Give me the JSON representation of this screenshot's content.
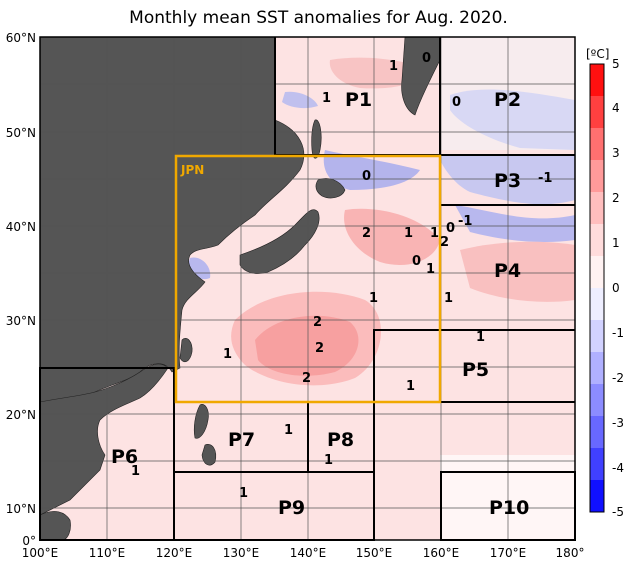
{
  "title": "Monthly mean SST anomalies for Aug. 2020.",
  "lat_labels": [
    {
      "value": 60,
      "text": "60°N"
    },
    {
      "value": 50,
      "text": "50°N"
    },
    {
      "value": 40,
      "text": "40°N"
    },
    {
      "value": 30,
      "text": "30°N"
    },
    {
      "value": 20,
      "text": "20°N"
    },
    {
      "value": 10,
      "text": "10°N"
    },
    {
      "value": 0,
      "text": "0°"
    }
  ],
  "lon_labels": [
    {
      "value": 100,
      "text": "100°E"
    },
    {
      "value": 110,
      "text": "110°E"
    },
    {
      "value": 120,
      "text": "120°E"
    },
    {
      "value": 130,
      "text": "130°E"
    },
    {
      "value": 140,
      "text": "140°E"
    },
    {
      "value": 150,
      "text": "150°E"
    },
    {
      "value": 160,
      "text": "160°E"
    },
    {
      "value": 170,
      "text": "170°E"
    },
    {
      "value": 180,
      "text": "180°"
    }
  ],
  "colorbar": {
    "unit": "[ºC]",
    "ticks": [
      "5",
      "4",
      "3",
      "2",
      "1",
      "0",
      "-1",
      "-2",
      "-3",
      "-4",
      "-5"
    ],
    "colors": [
      "#ff1010",
      "#ff4040",
      "#ff7070",
      "#ff9a9a",
      "#ffbebe",
      "#ffdcdc",
      "#fff2f2",
      "#eeeeff",
      "#d2d2ff",
      "#b0b0ff",
      "#8c8cff",
      "#6868ff",
      "#4040ff",
      "#1010ff"
    ]
  },
  "regions": [
    {
      "id": "JPN",
      "label": "JPN",
      "color": "#f0a800"
    },
    {
      "id": "P1",
      "label": "P1"
    },
    {
      "id": "P2",
      "label": "P2"
    },
    {
      "id": "P3",
      "label": "P3"
    },
    {
      "id": "P4",
      "label": "P4"
    },
    {
      "id": "P5",
      "label": "P5"
    },
    {
      "id": "P6",
      "label": "P6"
    },
    {
      "id": "P7",
      "label": "P7"
    },
    {
      "id": "P8",
      "label": "P8"
    },
    {
      "id": "P9",
      "label": "P9"
    },
    {
      "id": "P10",
      "label": "P10"
    }
  ],
  "contour_labels": [
    "1",
    "0",
    "1",
    "0",
    "0",
    "-1",
    "0",
    "2",
    "1",
    "1",
    "-1",
    "2",
    "0",
    "1",
    "1",
    "1",
    "2",
    "2",
    "2",
    "1",
    "1",
    "1",
    "1",
    "1",
    "1",
    "1",
    "1"
  ],
  "colors": {
    "land": "#555555",
    "ocean_base": "#fde3e3",
    "warm_core": "#f7a0a0",
    "cool_patch": "#c8c8f4",
    "grid": "#555555",
    "jpn_box": "#f0a800"
  }
}
